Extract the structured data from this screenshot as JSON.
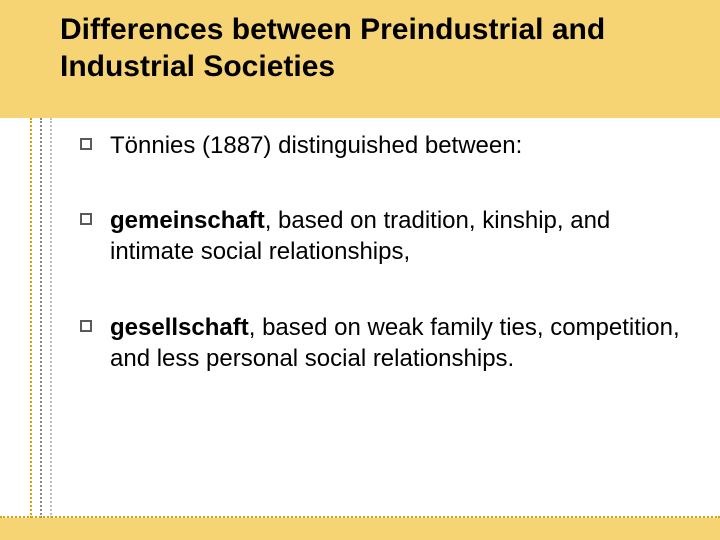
{
  "colors": {
    "header_bg": "#f6d373",
    "footer_bg": "#f6d373",
    "title_text": "#000000",
    "body_text": "#000000",
    "bullet_border": "#5a5a5a",
    "rail_line_1": "#d9a200",
    "rail_line_2": "#8a8a8a",
    "rail_line_3": "#c0c0c0",
    "footer_line": "#d9a200"
  },
  "layout": {
    "rail_line_widths": [
      2,
      2,
      2
    ]
  },
  "title": "Differences between Preindustrial and Industrial Societies",
  "bullets": [
    {
      "plain_before": "Tönnies (1887) distinguished between:",
      "bold": "",
      "plain_after": ""
    },
    {
      "plain_before": "",
      "bold": "gemeinschaft",
      "plain_after": ", based on tradition, kinship, and intimate social relationships,"
    },
    {
      "plain_before": "",
      "bold": "gesellschaft",
      "plain_after": ", based on weak family ties, competition, and less personal social relationships."
    }
  ]
}
